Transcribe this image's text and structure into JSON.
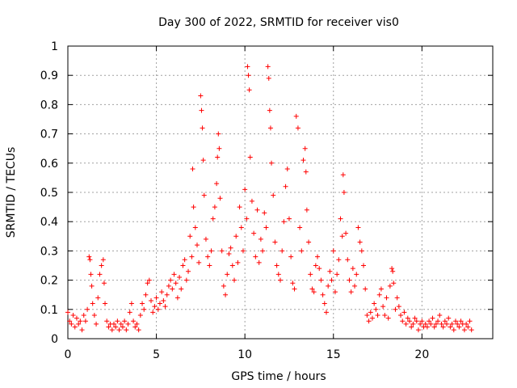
{
  "chart_data": {
    "type": "scatter",
    "title": "Day 300 of 2022, SRMTID for receiver vis0",
    "xlabel": "GPS time / hours",
    "ylabel": "SRMTID / TECUs",
    "xlim": [
      0,
      24
    ],
    "ylim": [
      0,
      1
    ],
    "x_ticks": [
      0,
      5,
      10,
      15,
      20
    ],
    "x_tick_labels": [
      "0",
      "5",
      "10",
      "15",
      "20"
    ],
    "y_ticks": [
      0,
      0.1,
      0.2,
      0.3,
      0.4,
      0.5,
      0.6,
      0.7,
      0.8,
      0.9,
      1
    ],
    "y_tick_labels": [
      "0",
      "0.1",
      "0.2",
      "0.3",
      "0.4",
      "0.5",
      "0.6",
      "0.7",
      "0.8",
      "0.9",
      "1"
    ],
    "grid": true,
    "marker": "+",
    "color": "#ff0000",
    "series": [
      {
        "name": "SRMTID",
        "points": [
          [
            0.0,
            0.09
          ],
          [
            0.1,
            0.06
          ],
          [
            0.2,
            0.05
          ],
          [
            0.3,
            0.08
          ],
          [
            0.4,
            0.04
          ],
          [
            0.5,
            0.07
          ],
          [
            0.6,
            0.05
          ],
          [
            0.7,
            0.06
          ],
          [
            0.8,
            0.03
          ],
          [
            0.9,
            0.08
          ],
          [
            1.0,
            0.06
          ],
          [
            1.1,
            0.1
          ],
          [
            1.2,
            0.28
          ],
          [
            1.25,
            0.27
          ],
          [
            1.3,
            0.22
          ],
          [
            1.35,
            0.18
          ],
          [
            1.4,
            0.12
          ],
          [
            1.5,
            0.08
          ],
          [
            1.6,
            0.05
          ],
          [
            1.7,
            0.14
          ],
          [
            1.8,
            0.22
          ],
          [
            1.9,
            0.25
          ],
          [
            2.0,
            0.27
          ],
          [
            2.05,
            0.19
          ],
          [
            2.1,
            0.12
          ],
          [
            2.2,
            0.06
          ],
          [
            2.3,
            0.04
          ],
          [
            2.4,
            0.05
          ],
          [
            2.5,
            0.03
          ],
          [
            2.6,
            0.05
          ],
          [
            2.7,
            0.04
          ],
          [
            2.8,
            0.06
          ],
          [
            2.9,
            0.03
          ],
          [
            3.0,
            0.05
          ],
          [
            3.1,
            0.04
          ],
          [
            3.2,
            0.06
          ],
          [
            3.3,
            0.03
          ],
          [
            3.4,
            0.05
          ],
          [
            3.5,
            0.09
          ],
          [
            3.6,
            0.12
          ],
          [
            3.7,
            0.06
          ],
          [
            3.8,
            0.04
          ],
          [
            3.9,
            0.05
          ],
          [
            4.0,
            0.03
          ],
          [
            4.1,
            0.08
          ],
          [
            4.2,
            0.12
          ],
          [
            4.3,
            0.1
          ],
          [
            4.4,
            0.15
          ],
          [
            4.5,
            0.19
          ],
          [
            4.6,
            0.2
          ],
          [
            4.7,
            0.13
          ],
          [
            4.8,
            0.09
          ],
          [
            4.9,
            0.11
          ],
          [
            5.0,
            0.14
          ],
          [
            5.1,
            0.1
          ],
          [
            5.2,
            0.12
          ],
          [
            5.3,
            0.16
          ],
          [
            5.4,
            0.13
          ],
          [
            5.5,
            0.11
          ],
          [
            5.6,
            0.15
          ],
          [
            5.7,
            0.18
          ],
          [
            5.8,
            0.2
          ],
          [
            5.9,
            0.17
          ],
          [
            6.0,
            0.22
          ],
          [
            6.1,
            0.19
          ],
          [
            6.2,
            0.14
          ],
          [
            6.3,
            0.21
          ],
          [
            6.4,
            0.17
          ],
          [
            6.5,
            0.25
          ],
          [
            6.6,
            0.27
          ],
          [
            6.7,
            0.2
          ],
          [
            6.8,
            0.23
          ],
          [
            6.9,
            0.35
          ],
          [
            7.0,
            0.28
          ],
          [
            7.05,
            0.58
          ],
          [
            7.1,
            0.45
          ],
          [
            7.2,
            0.38
          ],
          [
            7.3,
            0.32
          ],
          [
            7.4,
            0.26
          ],
          [
            7.5,
            0.83
          ],
          [
            7.55,
            0.78
          ],
          [
            7.6,
            0.72
          ],
          [
            7.65,
            0.61
          ],
          [
            7.7,
            0.49
          ],
          [
            7.8,
            0.34
          ],
          [
            7.9,
            0.28
          ],
          [
            8.0,
            0.25
          ],
          [
            8.1,
            0.3
          ],
          [
            8.2,
            0.41
          ],
          [
            8.3,
            0.45
          ],
          [
            8.4,
            0.53
          ],
          [
            8.45,
            0.62
          ],
          [
            8.5,
            0.7
          ],
          [
            8.55,
            0.65
          ],
          [
            8.6,
            0.48
          ],
          [
            8.7,
            0.3
          ],
          [
            8.8,
            0.18
          ],
          [
            8.9,
            0.15
          ],
          [
            9.0,
            0.22
          ],
          [
            9.1,
            0.29
          ],
          [
            9.2,
            0.31
          ],
          [
            9.3,
            0.25
          ],
          [
            9.4,
            0.2
          ],
          [
            9.5,
            0.35
          ],
          [
            9.6,
            0.26
          ],
          [
            9.7,
            0.45
          ],
          [
            9.8,
            0.38
          ],
          [
            9.9,
            0.3
          ],
          [
            10.0,
            0.51
          ],
          [
            10.1,
            0.41
          ],
          [
            10.15,
            0.93
          ],
          [
            10.2,
            0.9
          ],
          [
            10.25,
            0.85
          ],
          [
            10.3,
            0.62
          ],
          [
            10.4,
            0.47
          ],
          [
            10.5,
            0.36
          ],
          [
            10.6,
            0.28
          ],
          [
            10.7,
            0.44
          ],
          [
            10.8,
            0.26
          ],
          [
            10.9,
            0.34
          ],
          [
            11.0,
            0.3
          ],
          [
            11.1,
            0.43
          ],
          [
            11.2,
            0.38
          ],
          [
            11.3,
            0.93
          ],
          [
            11.35,
            0.89
          ],
          [
            11.4,
            0.78
          ],
          [
            11.45,
            0.72
          ],
          [
            11.5,
            0.6
          ],
          [
            11.6,
            0.49
          ],
          [
            11.7,
            0.33
          ],
          [
            11.8,
            0.25
          ],
          [
            11.9,
            0.22
          ],
          [
            12.0,
            0.2
          ],
          [
            12.1,
            0.3
          ],
          [
            12.2,
            0.4
          ],
          [
            12.3,
            0.52
          ],
          [
            12.4,
            0.58
          ],
          [
            12.5,
            0.41
          ],
          [
            12.6,
            0.28
          ],
          [
            12.7,
            0.19
          ],
          [
            12.8,
            0.17
          ],
          [
            12.9,
            0.76
          ],
          [
            13.0,
            0.72
          ],
          [
            13.1,
            0.38
          ],
          [
            13.2,
            0.3
          ],
          [
            13.3,
            0.61
          ],
          [
            13.4,
            0.65
          ],
          [
            13.45,
            0.57
          ],
          [
            13.5,
            0.44
          ],
          [
            13.6,
            0.33
          ],
          [
            13.7,
            0.22
          ],
          [
            13.8,
            0.17
          ],
          [
            13.9,
            0.16
          ],
          [
            14.0,
            0.25
          ],
          [
            14.1,
            0.28
          ],
          [
            14.2,
            0.24
          ],
          [
            14.3,
            0.2
          ],
          [
            14.4,
            0.15
          ],
          [
            14.5,
            0.12
          ],
          [
            14.6,
            0.09
          ],
          [
            14.7,
            0.18
          ],
          [
            14.8,
            0.23
          ],
          [
            14.9,
            0.2
          ],
          [
            15.0,
            0.3
          ],
          [
            15.1,
            0.16
          ],
          [
            15.2,
            0.22
          ],
          [
            15.3,
            0.27
          ],
          [
            15.4,
            0.41
          ],
          [
            15.5,
            0.35
          ],
          [
            15.55,
            0.56
          ],
          [
            15.6,
            0.5
          ],
          [
            15.7,
            0.36
          ],
          [
            15.8,
            0.27
          ],
          [
            15.9,
            0.2
          ],
          [
            16.0,
            0.16
          ],
          [
            16.1,
            0.24
          ],
          [
            16.2,
            0.18
          ],
          [
            16.3,
            0.22
          ],
          [
            16.4,
            0.38
          ],
          [
            16.5,
            0.33
          ],
          [
            16.6,
            0.3
          ],
          [
            16.7,
            0.25
          ],
          [
            16.8,
            0.17
          ],
          [
            16.9,
            0.08
          ],
          [
            17.0,
            0.06
          ],
          [
            17.1,
            0.09
          ],
          [
            17.2,
            0.07
          ],
          [
            17.3,
            0.12
          ],
          [
            17.4,
            0.1
          ],
          [
            17.5,
            0.08
          ],
          [
            17.6,
            0.15
          ],
          [
            17.7,
            0.17
          ],
          [
            17.8,
            0.11
          ],
          [
            17.9,
            0.08
          ],
          [
            18.0,
            0.14
          ],
          [
            18.1,
            0.07
          ],
          [
            18.2,
            0.18
          ],
          [
            18.3,
            0.24
          ],
          [
            18.35,
            0.23
          ],
          [
            18.4,
            0.19
          ],
          [
            18.5,
            0.1
          ],
          [
            18.6,
            0.14
          ],
          [
            18.7,
            0.11
          ],
          [
            18.8,
            0.08
          ],
          [
            18.9,
            0.06
          ],
          [
            19.0,
            0.09
          ],
          [
            19.1,
            0.05
          ],
          [
            19.2,
            0.07
          ],
          [
            19.3,
            0.06
          ],
          [
            19.4,
            0.04
          ],
          [
            19.5,
            0.05
          ],
          [
            19.6,
            0.07
          ],
          [
            19.7,
            0.06
          ],
          [
            19.8,
            0.03
          ],
          [
            19.9,
            0.05
          ],
          [
            20.0,
            0.06
          ],
          [
            20.1,
            0.04
          ],
          [
            20.2,
            0.05
          ],
          [
            20.3,
            0.04
          ],
          [
            20.4,
            0.06
          ],
          [
            20.5,
            0.05
          ],
          [
            20.6,
            0.07
          ],
          [
            20.7,
            0.04
          ],
          [
            20.8,
            0.05
          ],
          [
            20.9,
            0.06
          ],
          [
            21.0,
            0.08
          ],
          [
            21.1,
            0.05
          ],
          [
            21.2,
            0.04
          ],
          [
            21.3,
            0.06
          ],
          [
            21.4,
            0.05
          ],
          [
            21.5,
            0.07
          ],
          [
            21.6,
            0.04
          ],
          [
            21.7,
            0.05
          ],
          [
            21.8,
            0.03
          ],
          [
            21.9,
            0.06
          ],
          [
            22.0,
            0.05
          ],
          [
            22.1,
            0.04
          ],
          [
            22.2,
            0.06
          ],
          [
            22.3,
            0.05
          ],
          [
            22.4,
            0.03
          ],
          [
            22.5,
            0.05
          ],
          [
            22.6,
            0.04
          ],
          [
            22.7,
            0.06
          ],
          [
            22.8,
            0.03
          ]
        ]
      }
    ]
  }
}
